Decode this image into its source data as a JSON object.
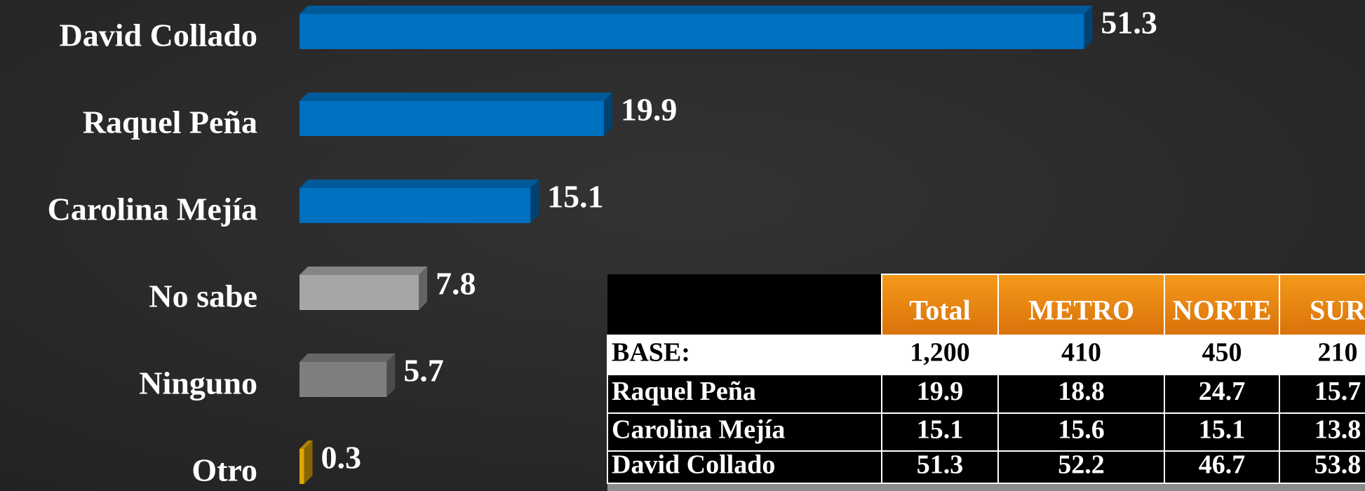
{
  "chart_data": {
    "type": "bar",
    "categories": [
      "David Collado",
      "Raquel Peña",
      "Carolina Mejía",
      "No sabe",
      "Ninguno",
      "Otro"
    ],
    "values": [
      51.3,
      19.9,
      15.1,
      7.8,
      5.7,
      0.3
    ],
    "colors": [
      "#0070c0",
      "#0070c0",
      "#0070c0",
      "#a6a6a6",
      "#7f7f7f",
      "#e0a800"
    ]
  },
  "table": {
    "columns": [
      "Total",
      "METRO",
      "NORTE",
      "SUR"
    ],
    "rows": [
      {
        "label": "BASE:",
        "values": [
          "1,200",
          410,
          450,
          210
        ]
      },
      {
        "label": "Raquel Peña",
        "values": [
          19.9,
          18.8,
          24.7,
          15.7
        ]
      },
      {
        "label": "Carolina Mejía",
        "values": [
          15.1,
          15.6,
          15.1,
          13.8
        ]
      },
      {
        "label": "David Collado",
        "values": [
          51.3,
          52.2,
          46.7,
          53.8
        ]
      }
    ]
  }
}
